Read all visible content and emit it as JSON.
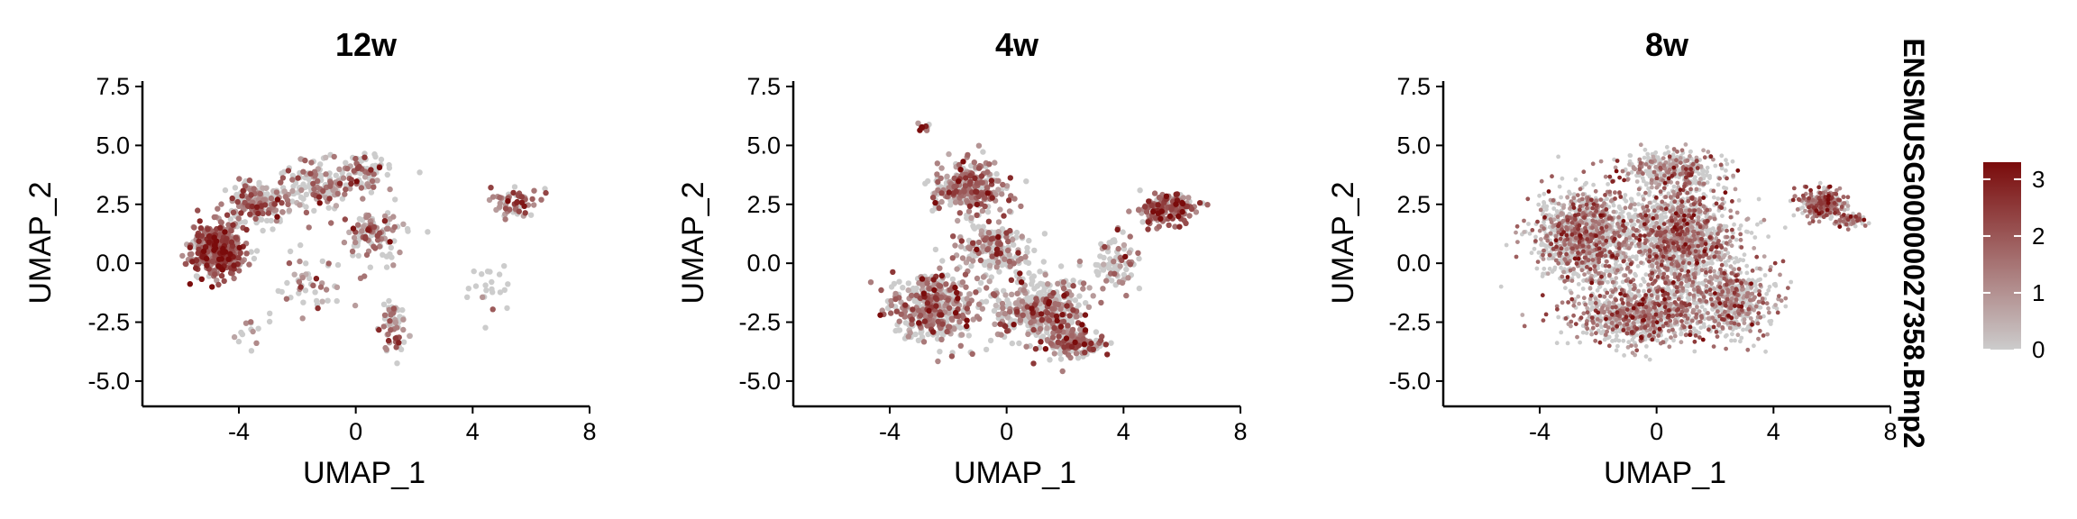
{
  "chart_data": [
    {
      "type": "scatter",
      "title": "12w",
      "xlabel": "UMAP_1",
      "ylabel": "UMAP_2",
      "xlim": [
        -7.3,
        8.0
      ],
      "ylim": [
        -5.5,
        7.5
      ],
      "xticks": [
        -4,
        0,
        4,
        8
      ],
      "xtick_labels": [
        "-4",
        "0",
        "4",
        "8"
      ],
      "yticks": [
        -5.0,
        -2.5,
        0.0,
        2.5,
        5.0,
        7.5
      ],
      "ytick_labels": [
        "-5.0",
        "-2.5",
        "0.0",
        "2.5",
        "5.0",
        "7.5"
      ],
      "grid": false,
      "clusters": [
        {
          "x": -4.7,
          "y": 0.6,
          "sx": 0.8,
          "sy": 1.0,
          "n": 420,
          "expr": 0.75
        },
        {
          "x": -3.3,
          "y": 2.6,
          "sx": 0.9,
          "sy": 0.8,
          "n": 200,
          "expr": 0.35
        },
        {
          "x": -1.2,
          "y": 3.3,
          "sx": 1.1,
          "sy": 0.9,
          "n": 150,
          "expr": 0.3
        },
        {
          "x": 0.3,
          "y": 3.9,
          "sx": 0.9,
          "sy": 0.7,
          "n": 70,
          "expr": 0.2
        },
        {
          "x": 0.6,
          "y": 1.2,
          "sx": 0.9,
          "sy": 1.1,
          "n": 110,
          "expr": 0.4
        },
        {
          "x": 1.3,
          "y": -2.6,
          "sx": 0.4,
          "sy": 1.0,
          "n": 60,
          "expr": 0.45
        },
        {
          "x": -1.6,
          "y": -0.8,
          "sx": 1.0,
          "sy": 1.0,
          "n": 45,
          "expr": 0.3
        },
        {
          "x": 5.4,
          "y": 2.6,
          "sx": 0.7,
          "sy": 0.6,
          "n": 65,
          "expr": 0.65
        },
        {
          "x": 4.6,
          "y": -1.2,
          "sx": 0.9,
          "sy": 1.2,
          "n": 22,
          "expr": 0.1
        },
        {
          "x": -3.6,
          "y": -2.6,
          "sx": 0.6,
          "sy": 0.7,
          "n": 14,
          "expr": 0.2
        }
      ]
    },
    {
      "type": "scatter",
      "title": "4w",
      "xlabel": "UMAP_1",
      "ylabel": "UMAP_2",
      "xlim": [
        -7.3,
        8.0
      ],
      "ylim": [
        -5.5,
        7.5
      ],
      "xticks": [
        -4,
        0,
        4,
        8
      ],
      "xtick_labels": [
        "-4",
        "0",
        "4",
        "8"
      ],
      "yticks": [
        -5.0,
        -2.5,
        0.0,
        2.5,
        5.0,
        7.5
      ],
      "ytick_labels": [
        "-5.0",
        "-2.5",
        "0.0",
        "2.5",
        "5.0",
        "7.5"
      ],
      "grid": false,
      "clusters": [
        {
          "x": -1.3,
          "y": 3.2,
          "sx": 1.1,
          "sy": 1.0,
          "n": 280,
          "expr": 0.45
        },
        {
          "x": -2.5,
          "y": -1.9,
          "sx": 1.3,
          "sy": 1.2,
          "n": 420,
          "expr": 0.35
        },
        {
          "x": 1.2,
          "y": -2.0,
          "sx": 1.4,
          "sy": 1.3,
          "n": 420,
          "expr": 0.3
        },
        {
          "x": 2.4,
          "y": -3.4,
          "sx": 0.9,
          "sy": 0.5,
          "n": 140,
          "expr": 0.4
        },
        {
          "x": 5.5,
          "y": 2.3,
          "sx": 0.9,
          "sy": 0.6,
          "n": 170,
          "expr": 0.7
        },
        {
          "x": 3.7,
          "y": 0.0,
          "sx": 0.8,
          "sy": 1.0,
          "n": 80,
          "expr": 0.2
        },
        {
          "x": -2.8,
          "y": 5.8,
          "sx": 0.2,
          "sy": 0.2,
          "n": 12,
          "expr": 0.5
        },
        {
          "x": -0.4,
          "y": 0.6,
          "sx": 1.2,
          "sy": 1.2,
          "n": 200,
          "expr": 0.25
        }
      ]
    },
    {
      "type": "scatter",
      "title": "8w",
      "xlabel": "UMAP_1",
      "ylabel": "UMAP_2",
      "xlim": [
        -7.3,
        8.0
      ],
      "ylim": [
        -5.5,
        7.5
      ],
      "xticks": [
        -4,
        0,
        4,
        8
      ],
      "xtick_labels": [
        "-4",
        "0",
        "4",
        "8"
      ],
      "yticks": [
        -5.0,
        -2.5,
        0.0,
        2.5,
        5.0,
        7.5
      ],
      "ytick_labels": [
        "-5.0",
        "-2.5",
        "0.0",
        "2.5",
        "5.0",
        "7.5"
      ],
      "grid": false,
      "clusters": [
        {
          "x": -2.4,
          "y": 1.2,
          "sx": 1.5,
          "sy": 1.8,
          "n": 1100,
          "expr": 0.3
        },
        {
          "x": 0.8,
          "y": 1.0,
          "sx": 1.7,
          "sy": 2.0,
          "n": 1300,
          "expr": 0.35
        },
        {
          "x": -0.5,
          "y": -2.2,
          "sx": 2.0,
          "sy": 1.1,
          "n": 900,
          "expr": 0.35
        },
        {
          "x": 2.6,
          "y": -1.6,
          "sx": 1.3,
          "sy": 1.3,
          "n": 500,
          "expr": 0.3
        },
        {
          "x": 0.5,
          "y": 4.0,
          "sx": 1.5,
          "sy": 0.7,
          "n": 350,
          "expr": 0.3
        },
        {
          "x": 5.7,
          "y": 2.5,
          "sx": 0.7,
          "sy": 0.6,
          "n": 260,
          "expr": 0.55
        },
        {
          "x": 6.7,
          "y": 1.8,
          "sx": 0.4,
          "sy": 0.3,
          "n": 60,
          "expr": 0.5
        }
      ]
    }
  ],
  "legend": {
    "title": "ENSMUSG00000027358.Bmp2",
    "min": 0,
    "max": 3.3,
    "ticks": [
      0,
      1,
      2,
      3
    ],
    "tick_labels": [
      "0",
      "1",
      "2",
      "3"
    ],
    "low_color": "#cccccc",
    "high_color": "#7a0b0b",
    "placement": "right"
  }
}
